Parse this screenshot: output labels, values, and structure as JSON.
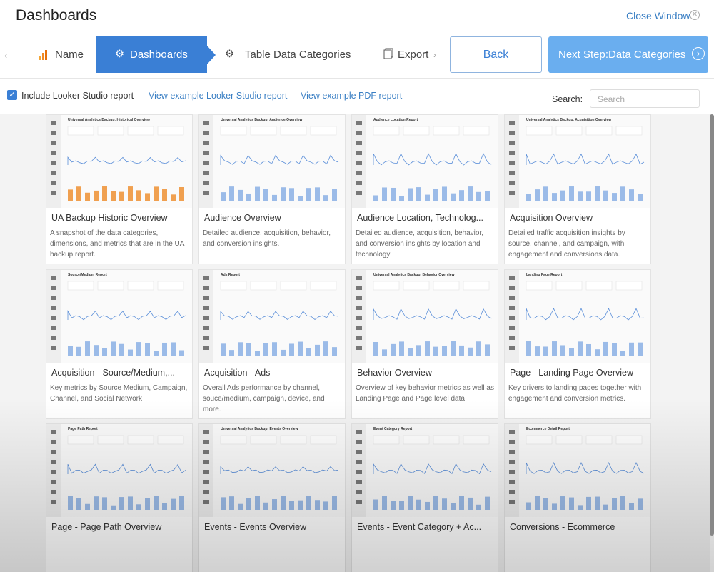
{
  "header": {
    "title": "Dashboards",
    "close": "Close Window"
  },
  "steps": [
    "Name",
    "Dashboards",
    "Table Data Categories",
    "Export"
  ],
  "buttons": {
    "back": "Back",
    "next": "Next Step:Data Categories"
  },
  "options": {
    "checkbox": "Include Looker Studio report",
    "links": [
      "View example Looker Studio report",
      "View example PDF report"
    ],
    "search_label": "Search:",
    "search_placeholder": "Search"
  },
  "cards": [
    {
      "thumb_title": "Universal Analytics Backup: Historical Overview",
      "title": "UA Backup Historic Overview",
      "description": "A snapshot of the data categories, dimensions, and metrics that are in the UA backup report."
    },
    {
      "thumb_title": "Universal Analytics Backup: Audience Overview",
      "title": "Audience Overview",
      "description": "Detailed audience, acquisition, behavior, and conversion insights."
    },
    {
      "thumb_title": "Audience Location Report",
      "title": "Audience Location, Technolog...",
      "description": "Detailed audience, acquisition, behavior, and conversion insights by location and technology"
    },
    {
      "thumb_title": "Universal Analytics Backup: Acquisition Overview",
      "title": "Acquisition Overview",
      "description": "Detailed traffic acquisition insights by source, channel, and campaign, with engagement and conversions data."
    },
    {
      "thumb_title": "Source/Medium Report",
      "title": "Acquisition - Source/Medium,...",
      "description": "Key metrics by Source Medium, Campaign, Channel, and Social Network"
    },
    {
      "thumb_title": "Ads Report",
      "title": "Acquisition - Ads",
      "description": "Overall Ads performance by channel, souce/medium, campaign, device, and more."
    },
    {
      "thumb_title": "Universal Analytics Backup: Behavior Overview",
      "title": "Behavior Overview",
      "description": "Overview of key behavior metrics as well as Landing Page and Page level data"
    },
    {
      "thumb_title": "Landing Page Report",
      "title": "Page - Landing Page Overview",
      "description": "Key drivers to landing pages together with engagement and conversion metrics."
    },
    {
      "thumb_title": "Page Path Report",
      "title": "Page - Page Path Overview"
    },
    {
      "thumb_title": "Universal Analytics Backup: Events Overview",
      "title": "Events - Events Overview"
    },
    {
      "thumb_title": "Event Category Report",
      "title": "Events - Event Category + Ac..."
    },
    {
      "thumb_title": "Ecommerce Detail Report",
      "title": "Conversions - Ecommerce"
    }
  ]
}
